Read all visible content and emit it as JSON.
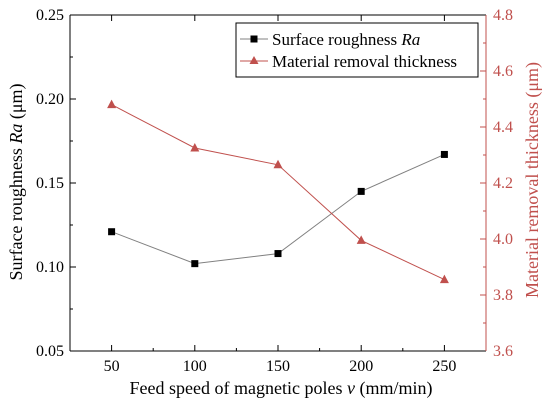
{
  "chart_data": {
    "type": "line",
    "x": [
      50,
      100,
      150,
      200,
      250
    ],
    "xticks": [
      "50",
      "100",
      "150",
      "200",
      "250"
    ],
    "xlim": [
      25,
      275
    ],
    "xlabel": {
      "pre": "Feed speed of magnetic poles ",
      "italic": "v",
      "post": " (mm/min)"
    },
    "y_left": {
      "label": {
        "pre": "Surface roughness ",
        "italic": "Ra",
        "post": " (μm)"
      },
      "lim": [
        0.05,
        0.25
      ],
      "ticks": [
        "0.05",
        "0.10",
        "0.15",
        "0.20",
        "0.25"
      ],
      "tick_values": [
        0.05,
        0.1,
        0.15,
        0.2,
        0.25
      ]
    },
    "y_right": {
      "label": "Material removal thickness (μm)",
      "lim": [
        3.6,
        4.8
      ],
      "ticks": [
        "3.6",
        "3.8",
        "4.0",
        "4.2",
        "4.4",
        "4.6",
        "4.8"
      ],
      "tick_values": [
        3.6,
        3.8,
        4.0,
        4.2,
        4.4,
        4.6,
        4.8
      ]
    },
    "series": [
      {
        "name": {
          "pre": "Surface roughness ",
          "italic": "Ra"
        },
        "axis": "left",
        "marker": "square",
        "color": "#000000",
        "line_color": "#808080",
        "values": [
          0.121,
          0.102,
          0.108,
          0.145,
          0.167
        ]
      },
      {
        "name": {
          "pre": "Material removal thickness",
          "italic": ""
        },
        "axis": "right",
        "marker": "triangle",
        "color": "#c0504d",
        "line_color": "#c0504d",
        "values": [
          4.48,
          4.325,
          4.265,
          3.995,
          3.855
        ]
      }
    ],
    "legend": "top-right",
    "grid": false,
    "colors": {
      "left_axis": "#000000",
      "right_axis": "#c0504d"
    }
  }
}
